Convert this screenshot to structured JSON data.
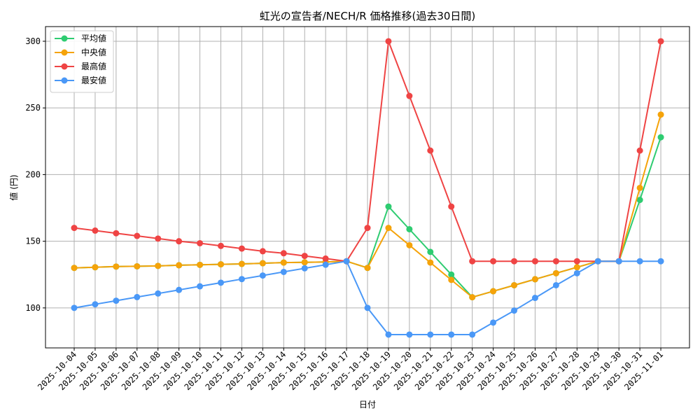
{
  "chart_data": {
    "type": "line",
    "title": "虹光の宣告者/NECH/R 価格推移(過去30日間)",
    "xlabel": "日付",
    "ylabel": "値 (円)",
    "ylim": [
      70,
      311
    ],
    "yticks": [
      100,
      150,
      200,
      250,
      300
    ],
    "grid": true,
    "legend": "top-left",
    "x": [
      "2025-10-04",
      "2025-10-05",
      "2025-10-06",
      "2025-10-07",
      "2025-10-08",
      "2025-10-09",
      "2025-10-10",
      "2025-10-11",
      "2025-10-12",
      "2025-10-13",
      "2025-10-14",
      "2025-10-15",
      "2025-10-16",
      "2025-10-17",
      "2025-10-18",
      "2025-10-19",
      "2025-10-20",
      "2025-10-21",
      "2025-10-22",
      "2025-10-23",
      "2025-10-24",
      "2025-10-25",
      "2025-10-26",
      "2025-10-27",
      "2025-10-28",
      "2025-10-29",
      "2025-10-30",
      "2025-10-31",
      "2025-11-01"
    ],
    "series": [
      {
        "name": "平均値",
        "color": "#2ecc71",
        "values": [
          130,
          130.5,
          131,
          131.2,
          131.5,
          132,
          132.3,
          132.7,
          133,
          133.5,
          134,
          134.2,
          134.5,
          135,
          130,
          176,
          159,
          142,
          125,
          108,
          112.5,
          117,
          121.5,
          126,
          130.5,
          135,
          135,
          181,
          228
        ]
      },
      {
        "name": "中央値",
        "color": "#f5a30a",
        "values": [
          130,
          130.5,
          131,
          131.2,
          131.5,
          132,
          132.3,
          132.7,
          133,
          133.5,
          134,
          134.2,
          134.5,
          135,
          130,
          160,
          147,
          134,
          121,
          108,
          112.5,
          117,
          121.5,
          126,
          130.5,
          135,
          135,
          190,
          245
        ]
      },
      {
        "name": "最高値",
        "color": "#ef4444",
        "values": [
          160,
          158,
          156,
          154,
          152,
          150,
          148.5,
          146.5,
          144.5,
          142.5,
          141,
          139,
          137,
          135,
          160,
          300,
          259,
          218,
          176,
          135,
          135,
          135,
          135,
          135,
          135,
          135,
          135,
          218,
          300
        ]
      },
      {
        "name": "最安値",
        "color": "#4a98f7",
        "values": [
          100,
          102.7,
          105.4,
          108.1,
          110.8,
          113.5,
          116.2,
          118.9,
          121.6,
          124.3,
          127,
          129.7,
          132.4,
          135,
          100,
          80,
          80,
          80,
          80,
          80,
          89,
          98,
          107.5,
          117,
          126,
          135,
          135,
          135,
          135
        ]
      }
    ]
  }
}
